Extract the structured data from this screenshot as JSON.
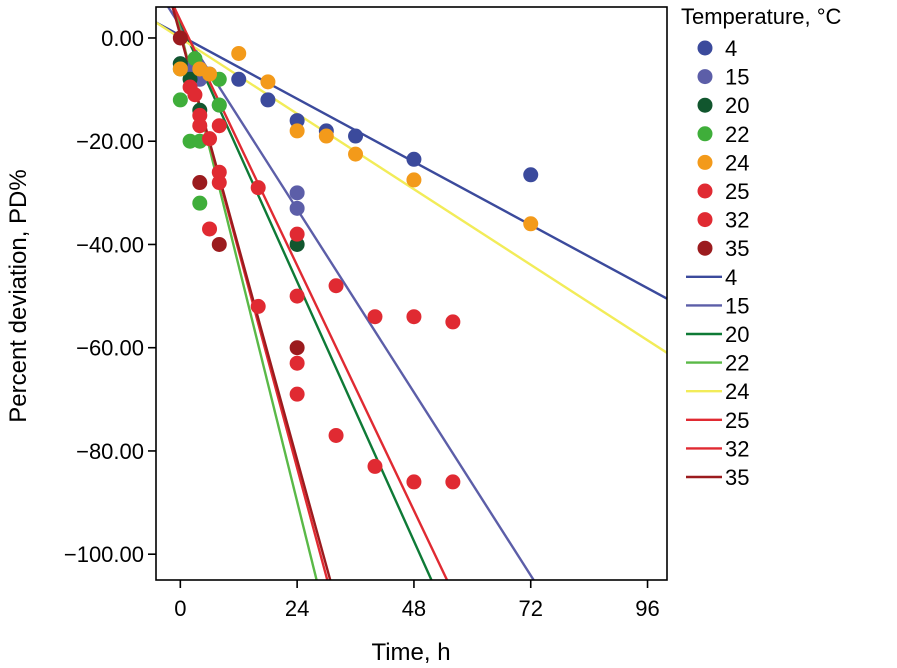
{
  "chart_data": {
    "type": "scatter",
    "xlabel": "Time, h",
    "ylabel": "Percent deviation, PD%",
    "xlim": [
      -5,
      100
    ],
    "ylim": [
      -105,
      6
    ],
    "xticks": [
      0,
      24,
      48,
      72,
      96
    ],
    "xtick_labels": [
      "0",
      "24",
      "48",
      "72",
      "96"
    ],
    "yticks": [
      0,
      -20,
      -40,
      -60,
      -80,
      -100
    ],
    "ytick_labels": [
      "0.00",
      "−20.00",
      "−40.00",
      "−60.00",
      "−80.00",
      "−100.00"
    ],
    "grid": false,
    "legend_title": "Temperature, °C",
    "legend_position": "right",
    "series": [
      {
        "name": "4",
        "color": "#3b4a9c",
        "points": [
          [
            0,
            -5
          ],
          [
            4,
            -7
          ],
          [
            6,
            -7
          ],
          [
            12,
            -8
          ],
          [
            18,
            -12
          ],
          [
            24,
            -16
          ],
          [
            30,
            -18
          ],
          [
            36,
            -19
          ],
          [
            48,
            -23.5
          ],
          [
            72,
            -26.5
          ]
        ]
      },
      {
        "name": "15",
        "color": "#5c5ea8",
        "points": [
          [
            2,
            -6
          ],
          [
            4,
            -8
          ],
          [
            8,
            -13
          ],
          [
            24,
            -30
          ],
          [
            24,
            -33
          ]
        ]
      },
      {
        "name": "20",
        "color": "#11562e",
        "points": [
          [
            0,
            -5
          ],
          [
            2,
            -8
          ],
          [
            4,
            -14
          ],
          [
            24,
            -40
          ]
        ]
      },
      {
        "name": "22",
        "color": "#3fae3a",
        "points": [
          [
            0,
            -6
          ],
          [
            0,
            -12
          ],
          [
            2,
            -20
          ],
          [
            3,
            -4
          ],
          [
            4,
            -20
          ],
          [
            4,
            -32
          ],
          [
            8,
            -13
          ],
          [
            8,
            -8
          ]
        ]
      },
      {
        "name": "24",
        "color": "#f39a1a",
        "points": [
          [
            0,
            -6
          ],
          [
            4,
            -6
          ],
          [
            6,
            -7
          ],
          [
            12,
            -3
          ],
          [
            18,
            -8.5
          ],
          [
            24,
            -18
          ],
          [
            30,
            -19
          ],
          [
            36,
            -22.5
          ],
          [
            48,
            -27.5
          ],
          [
            72,
            -36
          ]
        ]
      },
      {
        "name": "25",
        "color": "#e02a32",
        "points": [
          [
            2,
            -9.5
          ],
          [
            4,
            -15
          ],
          [
            6,
            -19.5
          ],
          [
            8,
            -17
          ],
          [
            8,
            -26
          ],
          [
            16,
            -29
          ],
          [
            24,
            -38
          ],
          [
            24,
            -50
          ],
          [
            32,
            -48
          ],
          [
            40,
            -54
          ],
          [
            48,
            -54
          ],
          [
            56,
            -55
          ]
        ]
      },
      {
        "name": "32",
        "color": "#e02a32",
        "points": [
          [
            3,
            -11
          ],
          [
            4,
            -17
          ],
          [
            6,
            -37
          ],
          [
            8,
            -28
          ],
          [
            16,
            -52
          ],
          [
            24,
            -63
          ],
          [
            24,
            -69
          ],
          [
            32,
            -77
          ],
          [
            40,
            -83
          ],
          [
            48,
            -86
          ],
          [
            56,
            -86
          ]
        ]
      },
      {
        "name": "35",
        "color": "#9b1b1e",
        "points": [
          [
            0,
            0
          ],
          [
            4,
            -28
          ],
          [
            8,
            -40
          ],
          [
            24,
            -60
          ]
        ]
      }
    ],
    "fit_lines": [
      {
        "name": "4",
        "color": "#3b4a9c",
        "x": [
          -5,
          100
        ],
        "y": [
          3,
          -50.5
        ]
      },
      {
        "name": "15",
        "color": "#5c5ea8",
        "x": [
          -2.5,
          72.6
        ],
        "y": [
          6,
          -105
        ]
      },
      {
        "name": "20",
        "color": "#0e7a36",
        "x": [
          -1.4,
          51.6
        ],
        "y": [
          6,
          -105
        ]
      },
      {
        "name": "22",
        "color": "#5ab947",
        "x": [
          -1.2,
          28
        ],
        "y": [
          6,
          -105
        ]
      },
      {
        "name": "24",
        "color": "#f2ec59",
        "x": [
          -5,
          100
        ],
        "y": [
          3,
          -61
        ]
      },
      {
        "name": "25",
        "color": "#e02a32",
        "x": [
          -1.3,
          54.8
        ],
        "y": [
          6,
          -105
        ]
      },
      {
        "name": "32",
        "color": "#e02a32",
        "x": [
          -1.5,
          30.2
        ],
        "y": [
          6,
          -105
        ]
      },
      {
        "name": "35",
        "color": "#9b1b1e",
        "x": [
          -1.6,
          30.8
        ],
        "y": [
          6,
          -105
        ]
      }
    ]
  }
}
